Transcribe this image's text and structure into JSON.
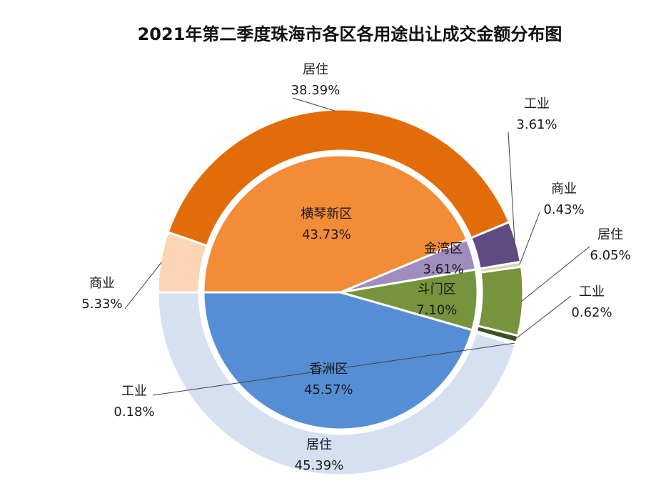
{
  "chart_data": {
    "type": "pie",
    "subtype": "sunburst",
    "title": "2021年第二季度珠海市各区各用途出让成交金额分布图",
    "inner": [
      {
        "name": "香洲区",
        "value": 45.57,
        "label": "45.57%",
        "color": "#558ed5"
      },
      {
        "name": "斗门区",
        "value": 7.1,
        "label": "7.10%",
        "color": "#77933c"
      },
      {
        "name": "金湾区",
        "value": 3.61,
        "label": "3.61%",
        "color": "#9f8dbd"
      },
      {
        "name": "横琴新区",
        "value": 43.73,
        "label": "43.73%",
        "color": "#f28c37"
      }
    ],
    "outer": [
      {
        "name": "居住",
        "parent": "香洲区",
        "value": 45.39,
        "label": "45.39%",
        "color": "#d5e0f1"
      },
      {
        "name": "工业",
        "parent": "香洲区",
        "value": 0.18,
        "label": "0.18%",
        "color": "#c6d7ee"
      },
      {
        "name": "工业",
        "parent": "斗门区",
        "value": 0.62,
        "label": "0.62%",
        "color": "#3d5220"
      },
      {
        "name": "居住",
        "parent": "斗门区",
        "value": 6.05,
        "label": "6.05%",
        "color": "#77933c"
      },
      {
        "name": "商业",
        "parent": "斗门区",
        "value": 0.43,
        "label": "0.43%",
        "color": "#c9d9a8"
      },
      {
        "name": "工业",
        "parent": "金湾区",
        "value": 3.61,
        "label": "3.61%",
        "color": "#5f4b82"
      },
      {
        "name": "居住",
        "parent": "横琴新区",
        "value": 38.39,
        "label": "38.39%",
        "color": "#e36c0a"
      },
      {
        "name": "商业",
        "parent": "横琴新区",
        "value": 5.33,
        "label": "5.33%",
        "color": "#fcd5b5"
      }
    ],
    "unit": "%"
  }
}
